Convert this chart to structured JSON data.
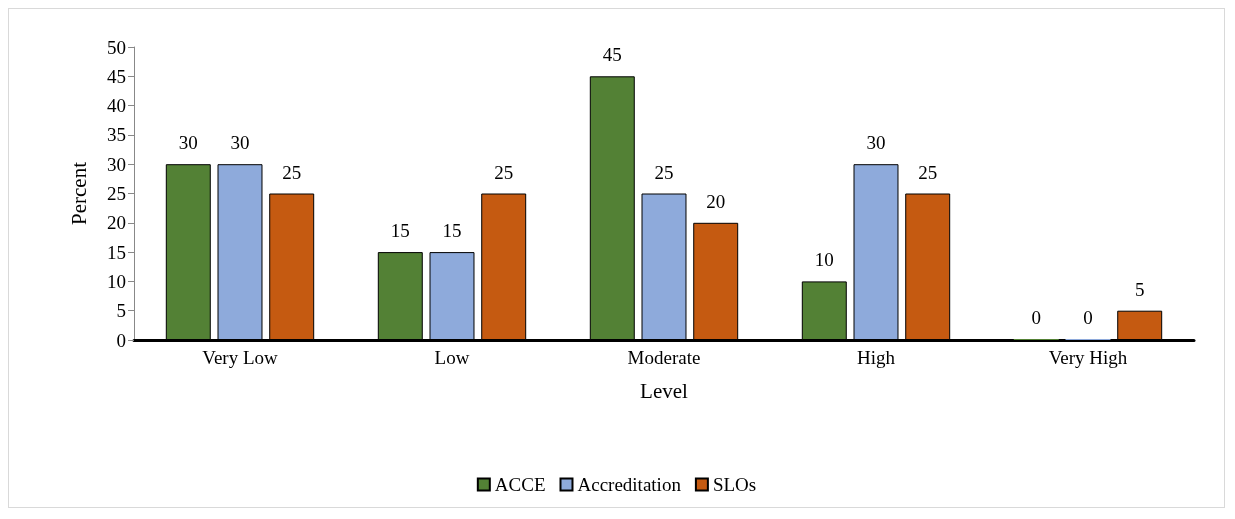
{
  "chart_data": {
    "type": "bar",
    "xlabel": "Level",
    "ylabel": "Percent",
    "categories": [
      "Very Low",
      "Low",
      "Moderate",
      "High",
      "Very High"
    ],
    "series": [
      {
        "name": "ACCE",
        "color": "#538135",
        "values": [
          30,
          15,
          45,
          10,
          0
        ]
      },
      {
        "name": "Accreditation",
        "color": "#8eaadb",
        "values": [
          30,
          15,
          25,
          30,
          0
        ]
      },
      {
        "name": "SLOs",
        "color": "#c55a11",
        "values": [
          25,
          25,
          20,
          25,
          5
        ]
      }
    ],
    "ylim": [
      0,
      50
    ],
    "yticks": [
      0,
      5,
      10,
      15,
      20,
      25,
      30,
      35,
      40,
      45,
      50
    ],
    "grid": false,
    "legend": "bottom",
    "data_labels": true
  }
}
